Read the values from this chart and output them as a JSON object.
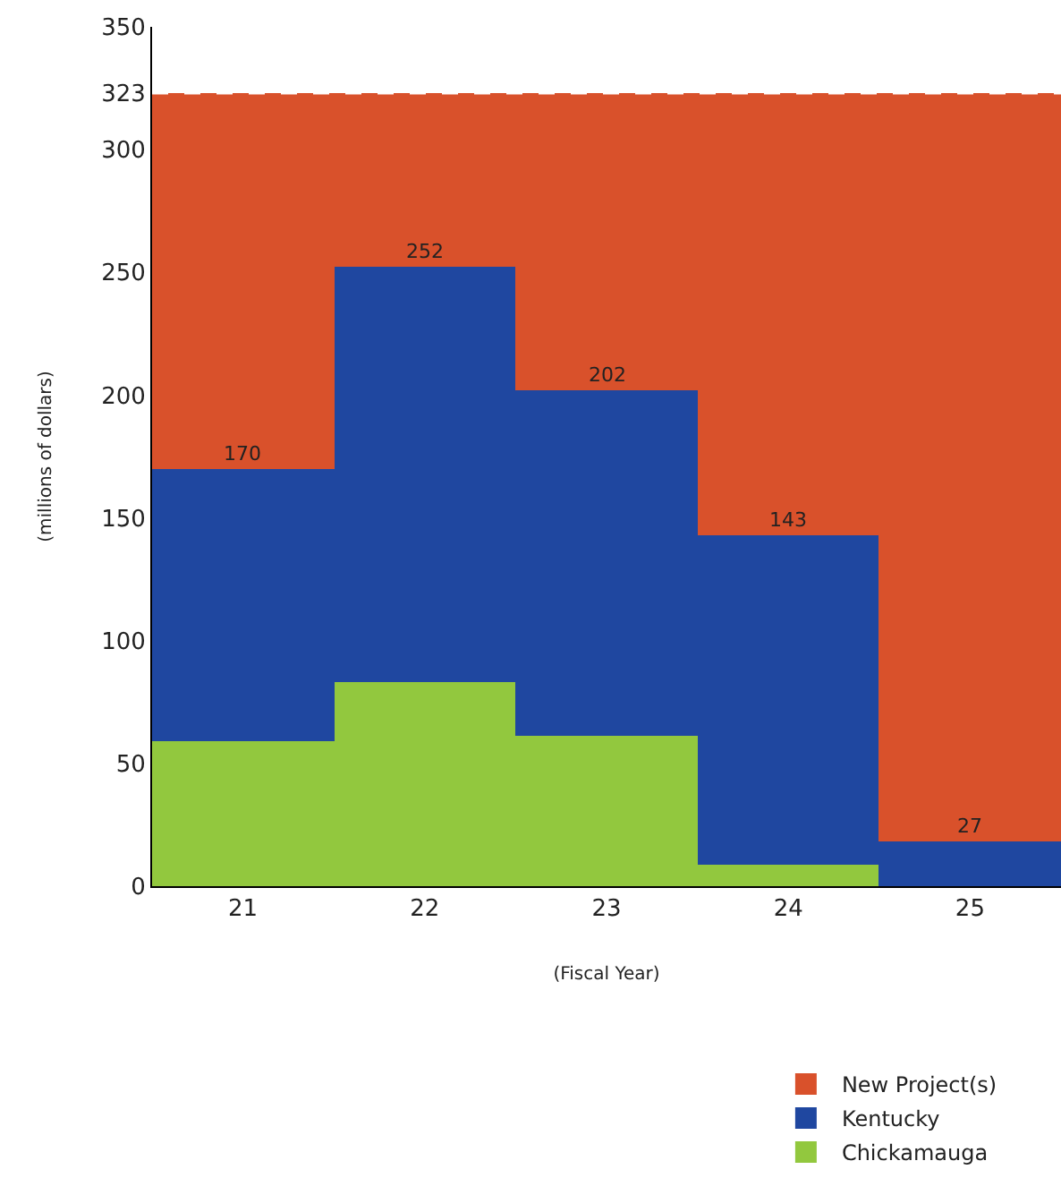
{
  "chart_data": {
    "type": "bar",
    "stacked": true,
    "xlabel": "(Fiscal Year)",
    "ylabel": "(millions of dollars)",
    "categories": [
      "21",
      "22",
      "23",
      "24",
      "25"
    ],
    "series": [
      {
        "name": "Chickamauga",
        "color": "#92c83e",
        "values": [
          59,
          83,
          61,
          9,
          0
        ]
      },
      {
        "name": "Kentucky",
        "color": "#1f47a0",
        "values": [
          111,
          169,
          141,
          134,
          18
        ]
      },
      {
        "name": "New Project(s)",
        "color": "#d9512b",
        "values": [
          153,
          71,
          121,
          180,
          305
        ]
      }
    ],
    "annotations": [
      {
        "text": "170",
        "x": "21",
        "y": 170
      },
      {
        "text": "252",
        "x": "22",
        "y": 252
      },
      {
        "text": "202",
        "x": "23",
        "y": 202
      },
      {
        "text": "143",
        "x": "24",
        "y": 143
      },
      {
        "text": "27",
        "x": "25",
        "y": 18
      }
    ],
    "ylim": [
      0,
      350
    ],
    "yticks": [
      0,
      50,
      100,
      150,
      200,
      250,
      300,
      323,
      350
    ],
    "ref_lines": [
      {
        "axis": "y",
        "value": 323,
        "color": "#ffffff",
        "line_style": "dashed"
      }
    ],
    "legend": "bottom right"
  }
}
